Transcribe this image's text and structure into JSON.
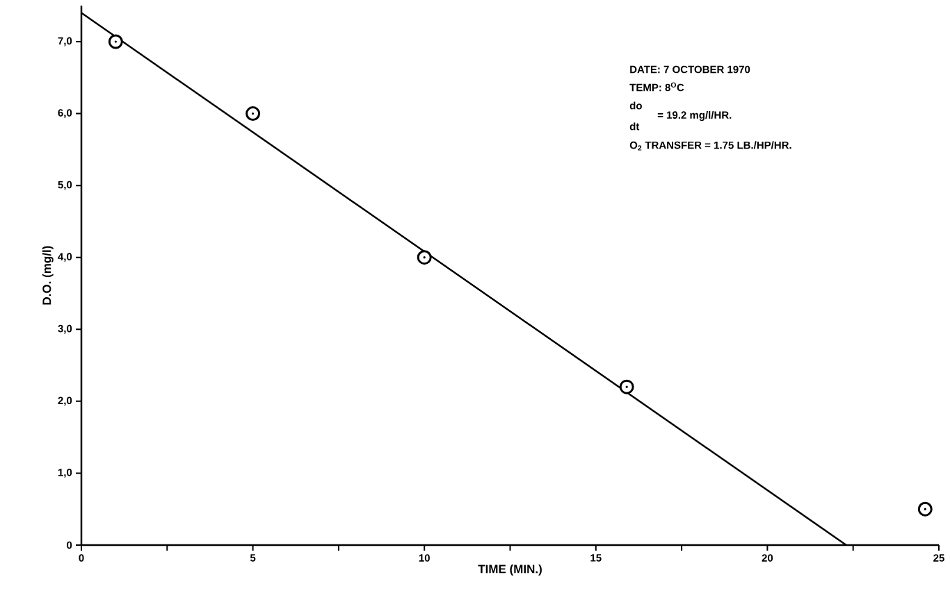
{
  "chart_data": {
    "type": "scatter",
    "xlabel": "TIME (MIN.)",
    "ylabel": "D.O. (mg/l)",
    "annotations": [
      "DATE:  7 OCTOBER 1970",
      "TEMP:  8$^{O}$C",
      "do",
      "dt",
      "=  19.2 mg/l/HR.",
      "O$_{2}$ TRANSFER = 1.75 LB./HP/HR."
    ],
    "series": [
      {
        "type": "line",
        "color": "#000000",
        "marker": "none",
        "line_style": "solid",
        "x": [
          0,
          22.3
        ],
        "values": [
          7.4,
          0
        ]
      },
      {
        "color": "#000000",
        "marker": "circle",
        "x": [
          1,
          5,
          10,
          15.9,
          24.6
        ],
        "values": [
          7.0,
          6.0,
          4.0,
          2.2,
          0.5
        ]
      }
    ],
    "xlim": [
      0,
      25
    ],
    "ylim": [
      0,
      7.5
    ],
    "xticks": [
      0,
      {
        "value": 2.5,
        "label": null
      },
      5,
      {
        "value": 7.5,
        "label": null
      },
      10,
      {
        "value": 12.5,
        "label": null
      },
      15,
      {
        "value": 17.5,
        "label": null
      },
      20,
      {
        "value": 22.5,
        "label": null
      },
      25
    ],
    "yticks": [
      0,
      {
        "value": 1,
        "label": "1,0"
      },
      {
        "value": 2,
        "label": "2,0"
      },
      {
        "value": 3,
        "label": "3,0"
      },
      {
        "value": 4,
        "label": "4,0"
      },
      {
        "value": 5,
        "label": "5,0"
      },
      {
        "value": 6,
        "label": "6,0"
      },
      {
        "value": 7,
        "label": "7,0"
      }
    ],
    "tick_labels": true
  }
}
